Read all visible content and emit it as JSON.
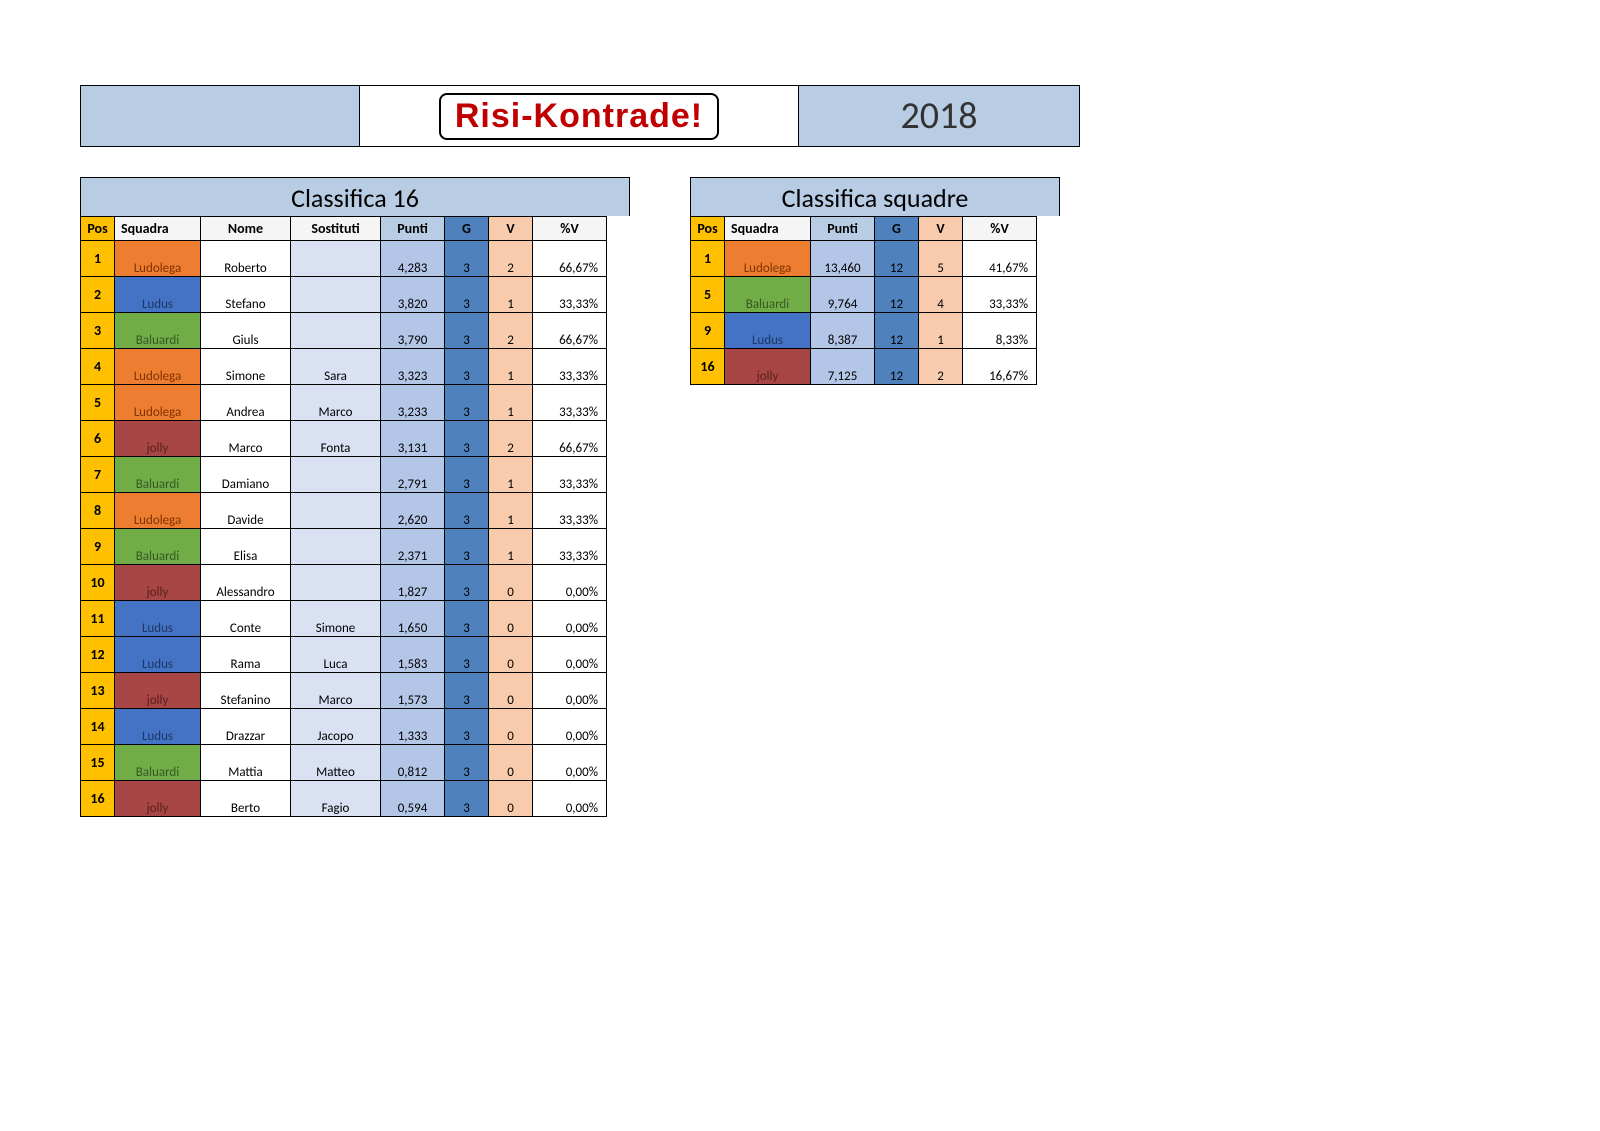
{
  "banner": {
    "logo": "Risi-Kontrade!",
    "year": "2018"
  },
  "teamColors": {
    "Ludolega": {
      "bg": "#ed7d31",
      "fg": "#7f3300"
    },
    "Ludus": {
      "bg": "#4472c4",
      "fg": "#1f3864"
    },
    "Baluardi": {
      "bg": "#70ad47",
      "fg": "#385723"
    },
    "jolly": {
      "bg": "#a84545",
      "fg": "#5a1f1f"
    }
  },
  "players": {
    "title": "Classifica 16",
    "columns": [
      "Pos",
      "Squadra",
      "Nome",
      "Sostituti",
      "Punti",
      "G",
      "V",
      "%V"
    ],
    "rows": [
      {
        "pos": "1",
        "squad": "Ludolega",
        "nome": "Roberto",
        "sost": "",
        "punti": "4,283",
        "g": "3",
        "v": "2",
        "pv": "66,67%"
      },
      {
        "pos": "2",
        "squad": "Ludus",
        "nome": "Stefano",
        "sost": "",
        "punti": "3,820",
        "g": "3",
        "v": "1",
        "pv": "33,33%"
      },
      {
        "pos": "3",
        "squad": "Baluardi",
        "nome": "Giuls",
        "sost": "",
        "punti": "3,790",
        "g": "3",
        "v": "2",
        "pv": "66,67%"
      },
      {
        "pos": "4",
        "squad": "Ludolega",
        "nome": "Simone",
        "sost": "Sara",
        "punti": "3,323",
        "g": "3",
        "v": "1",
        "pv": "33,33%"
      },
      {
        "pos": "5",
        "squad": "Ludolega",
        "nome": "Andrea",
        "sost": "Marco",
        "punti": "3,233",
        "g": "3",
        "v": "1",
        "pv": "33,33%"
      },
      {
        "pos": "6",
        "squad": "jolly",
        "nome": "Marco",
        "sost": "Fonta",
        "punti": "3,131",
        "g": "3",
        "v": "2",
        "pv": "66,67%"
      },
      {
        "pos": "7",
        "squad": "Baluardi",
        "nome": "Damiano",
        "sost": "",
        "punti": "2,791",
        "g": "3",
        "v": "1",
        "pv": "33,33%"
      },
      {
        "pos": "8",
        "squad": "Ludolega",
        "nome": "Davide",
        "sost": "",
        "punti": "2,620",
        "g": "3",
        "v": "1",
        "pv": "33,33%"
      },
      {
        "pos": "9",
        "squad": "Baluardi",
        "nome": "Elisa",
        "sost": "",
        "punti": "2,371",
        "g": "3",
        "v": "1",
        "pv": "33,33%"
      },
      {
        "pos": "10",
        "squad": "jolly",
        "nome": "Alessandro",
        "sost": "",
        "punti": "1,827",
        "g": "3",
        "v": "0",
        "pv": "0,00%"
      },
      {
        "pos": "11",
        "squad": "Ludus",
        "nome": "Conte",
        "sost": "Simone",
        "punti": "1,650",
        "g": "3",
        "v": "0",
        "pv": "0,00%"
      },
      {
        "pos": "12",
        "squad": "Ludus",
        "nome": "Rama",
        "sost": "Luca",
        "punti": "1,583",
        "g": "3",
        "v": "0",
        "pv": "0,00%"
      },
      {
        "pos": "13",
        "squad": "jolly",
        "nome": "Stefanino",
        "sost": "Marco",
        "punti": "1,573",
        "g": "3",
        "v": "0",
        "pv": "0,00%"
      },
      {
        "pos": "14",
        "squad": "Ludus",
        "nome": "Drazzar",
        "sost": "Jacopo",
        "punti": "1,333",
        "g": "3",
        "v": "0",
        "pv": "0,00%"
      },
      {
        "pos": "15",
        "squad": "Baluardi",
        "nome": "Mattia",
        "sost": "Matteo",
        "punti": "0,812",
        "g": "3",
        "v": "0",
        "pv": "0,00%"
      },
      {
        "pos": "16",
        "squad": "jolly",
        "nome": "Berto",
        "sost": "Fagio",
        "punti": "0,594",
        "g": "3",
        "v": "0",
        "pv": "0,00%"
      }
    ]
  },
  "squads": {
    "title": "Classifica squadre",
    "columns": [
      "Pos",
      "Squadra",
      "Punti",
      "G",
      "V",
      "%V"
    ],
    "rows": [
      {
        "pos": "1",
        "squad": "Ludolega",
        "punti": "13,460",
        "g": "12",
        "v": "5",
        "pv": "41,67%"
      },
      {
        "pos": "5",
        "squad": "Baluardi",
        "punti": "9,764",
        "g": "12",
        "v": "4",
        "pv": "33,33%"
      },
      {
        "pos": "9",
        "squad": "Ludus",
        "punti": "8,387",
        "g": "12",
        "v": "1",
        "pv": "8,33%"
      },
      {
        "pos": "16",
        "squad": "jolly",
        "punti": "7,125",
        "g": "12",
        "v": "2",
        "pv": "16,67%"
      }
    ]
  }
}
